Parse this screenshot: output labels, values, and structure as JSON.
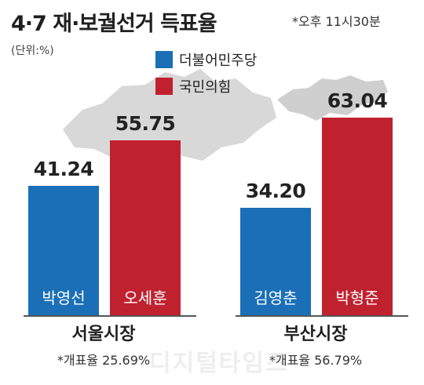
{
  "title": "4·7 재·보궐선거 득표율",
  "time_note": "*오후 11시30분",
  "unit_note": "(단위:%)",
  "legend": [
    {
      "label": "더불어민주당",
      "color": "#1a6fb6"
    },
    {
      "label": "국민의힘",
      "color": "#c0212f"
    }
  ],
  "watermark": "디지털타임즈",
  "chart_data": {
    "type": "bar",
    "ylabel": "",
    "ylim": [
      0,
      70
    ],
    "groups": [
      {
        "region": "서울시장",
        "turnout": "*개표율 25.69%",
        "bars": [
          {
            "candidate": "박영선",
            "party": "더불어민주당",
            "value": 41.24,
            "label": "41.24",
            "color": "#1a6fb6"
          },
          {
            "candidate": "오세훈",
            "party": "국민의힘",
            "value": 55.75,
            "label": "55.75",
            "color": "#c0212f"
          }
        ]
      },
      {
        "region": "부산시장",
        "turnout": "*개표율 56.79%",
        "bars": [
          {
            "candidate": "김영춘",
            "party": "더불어민주당",
            "value": 34.2,
            "label": "34.20",
            "color": "#1a6fb6"
          },
          {
            "candidate": "박형준",
            "party": "국민의힘",
            "value": 63.04,
            "label": "63.04",
            "color": "#c0212f"
          }
        ]
      }
    ]
  }
}
